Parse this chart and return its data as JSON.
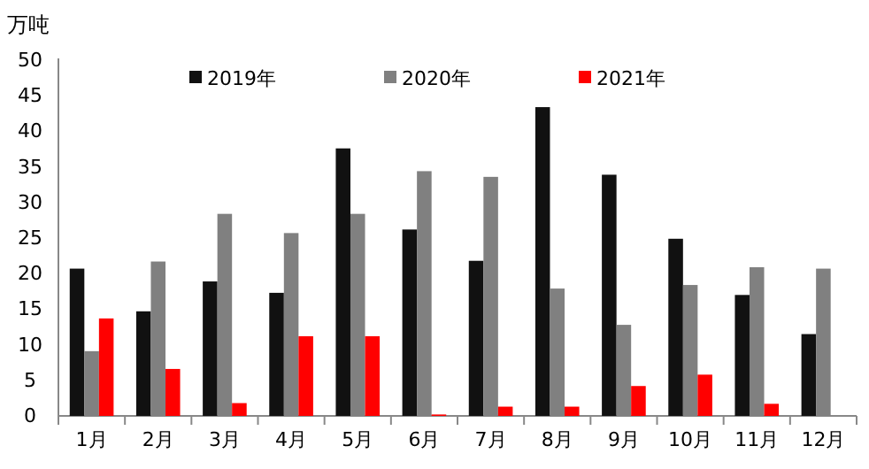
{
  "chart_data": {
    "type": "bar",
    "ylabel": "万吨",
    "categories": [
      "1月",
      "2月",
      "3月",
      "4月",
      "5月",
      "6月",
      "7月",
      "8月",
      "9月",
      "10月",
      "11月",
      "12月"
    ],
    "series": [
      {
        "name": "2019年",
        "color": "#111111",
        "values": [
          20.7,
          14.7,
          18.9,
          17.3,
          37.6,
          26.2,
          21.8,
          43.4,
          33.9,
          24.9,
          17.0,
          11.5
        ]
      },
      {
        "name": "2020年",
        "color": "#808080",
        "values": [
          9.1,
          21.7,
          28.4,
          25.7,
          28.4,
          34.4,
          33.6,
          17.9,
          12.8,
          18.4,
          20.9,
          20.7
        ]
      },
      {
        "name": "2021年",
        "color": "#ff0000",
        "values": [
          13.7,
          6.6,
          1.8,
          11.2,
          11.2,
          0.2,
          1.3,
          1.3,
          4.2,
          5.8,
          1.7,
          null
        ]
      }
    ],
    "ylim": [
      0,
      50
    ],
    "yticks": [
      0,
      5,
      10,
      15,
      20,
      25,
      30,
      35,
      40,
      45,
      50
    ],
    "legend": "top"
  }
}
